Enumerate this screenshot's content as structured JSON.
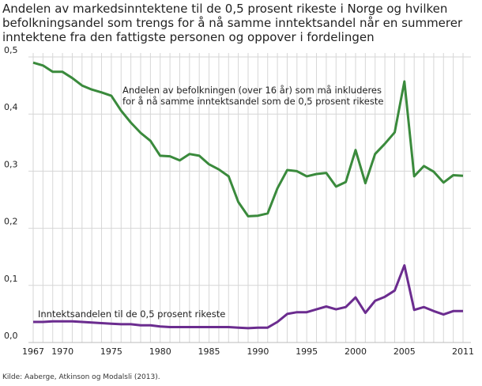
{
  "chart_data": {
    "type": "line",
    "title": "Andelen av markedsinntektene til de 0,5 prosent rikeste i Norge og hvilken befolkningsandel som trengs for å nå samme inntektsandel når en summerer inntektene fra den fattigste personen og oppover i fordelingen",
    "xlabel": "",
    "ylabel": "",
    "xlim": [
      1967,
      2011
    ],
    "ylim": [
      0,
      0.5
    ],
    "grid": true,
    "x_tick_labels": [
      "1967",
      "1970",
      "1975",
      "1980",
      "1985",
      "1990",
      "1995",
      "2000",
      "2005",
      "2011"
    ],
    "x_tick_values": [
      1967,
      1970,
      1975,
      1980,
      1985,
      1990,
      1995,
      2000,
      2005,
      2011
    ],
    "y_tick_labels": [
      "0,0",
      "0,1",
      "0,2",
      "0,3",
      "0,4",
      "0,5"
    ],
    "y_tick_values": [
      0,
      0.1,
      0.2,
      0.3,
      0.4,
      0.5
    ],
    "x": [
      1967,
      1968,
      1969,
      1970,
      1971,
      1972,
      1973,
      1974,
      1975,
      1976,
      1977,
      1978,
      1979,
      1980,
      1981,
      1982,
      1983,
      1984,
      1985,
      1986,
      1987,
      1988,
      1989,
      1990,
      1991,
      1992,
      1993,
      1994,
      1995,
      1996,
      1997,
      1998,
      1999,
      2000,
      2001,
      2002,
      2003,
      2004,
      2005,
      2006,
      2007,
      2008,
      2009,
      2010,
      2011
    ],
    "series": [
      {
        "name": "Andelen av befolkningen (over 16 år) som må inkluderes for å nå samme inntektsandel som de 0,5 prosent rikeste",
        "label_lines": [
          "Andelen av befolkningen (over 16 år) som må inkluderes",
          "for å nå samme inntektsandel som de 0,5 prosent rikeste"
        ],
        "color": "#3a8a3c",
        "values": [
          0.49,
          0.485,
          0.474,
          0.474,
          0.463,
          0.45,
          0.443,
          0.438,
          0.432,
          0.406,
          0.385,
          0.367,
          0.353,
          0.327,
          0.326,
          0.319,
          0.33,
          0.327,
          0.312,
          0.303,
          0.291,
          0.246,
          0.221,
          0.222,
          0.226,
          0.27,
          0.302,
          0.3,
          0.291,
          0.295,
          0.297,
          0.273,
          0.281,
          0.337,
          0.279,
          0.33,
          0.348,
          0.368,
          0.457,
          0.291,
          0.309,
          0.299,
          0.28,
          0.293,
          0.292
        ]
      },
      {
        "name": "Inntektsandelen til de 0,5 prosent rikeste",
        "label_lines": [
          "Inntektsandelen til de 0,5 prosent rikeste"
        ],
        "color": "#6b2c8f",
        "values": [
          0.036,
          0.036,
          0.037,
          0.037,
          0.037,
          0.036,
          0.035,
          0.034,
          0.033,
          0.032,
          0.032,
          0.03,
          0.03,
          0.028,
          0.027,
          0.027,
          0.027,
          0.027,
          0.027,
          0.027,
          0.027,
          0.026,
          0.025,
          0.026,
          0.026,
          0.036,
          0.05,
          0.053,
          0.053,
          0.058,
          0.063,
          0.058,
          0.062,
          0.079,
          0.052,
          0.073,
          0.08,
          0.091,
          0.135,
          0.057,
          0.062,
          0.055,
          0.049,
          0.055,
          0.055
        ]
      }
    ]
  },
  "source": "Kilde: Aaberge, Atkinson og Modalsli (2013)."
}
